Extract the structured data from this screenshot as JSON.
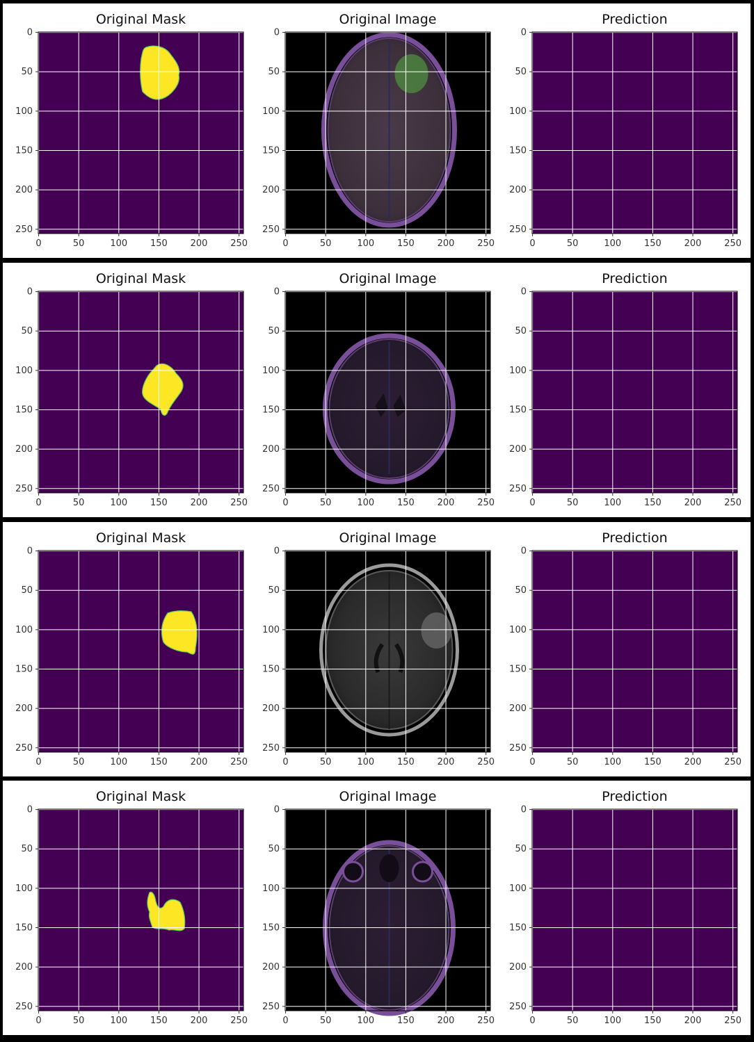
{
  "figure": {
    "rows": [
      {
        "panels": [
          {
            "title": "Original Mask",
            "kind": "mask",
            "blob": "A"
          },
          {
            "title": "Original Image",
            "kind": "mri",
            "variant": 1
          },
          {
            "title": "Prediction",
            "kind": "empty"
          }
        ]
      },
      {
        "panels": [
          {
            "title": "Original Mask",
            "kind": "mask",
            "blob": "B"
          },
          {
            "title": "Original Image",
            "kind": "mri",
            "variant": 2
          },
          {
            "title": "Prediction",
            "kind": "empty"
          }
        ]
      },
      {
        "panels": [
          {
            "title": "Original Mask",
            "kind": "mask",
            "blob": "C"
          },
          {
            "title": "Original Image",
            "kind": "mri",
            "variant": 3
          },
          {
            "title": "Prediction",
            "kind": "empty"
          }
        ]
      },
      {
        "panels": [
          {
            "title": "Original Mask",
            "kind": "mask",
            "blob": "D"
          },
          {
            "title": "Original Image",
            "kind": "mri",
            "variant": 4
          },
          {
            "title": "Prediction",
            "kind": "empty"
          }
        ]
      }
    ],
    "x_ticks": [
      "0",
      "50",
      "100",
      "150",
      "200",
      "250"
    ],
    "y_ticks": [
      "0",
      "50",
      "100",
      "150",
      "200",
      "250"
    ],
    "colors": {
      "mask_background": "#440154",
      "mask_foreground": "#fde725",
      "mask_edge": "#5ec962",
      "grid": "#ffffff"
    }
  }
}
